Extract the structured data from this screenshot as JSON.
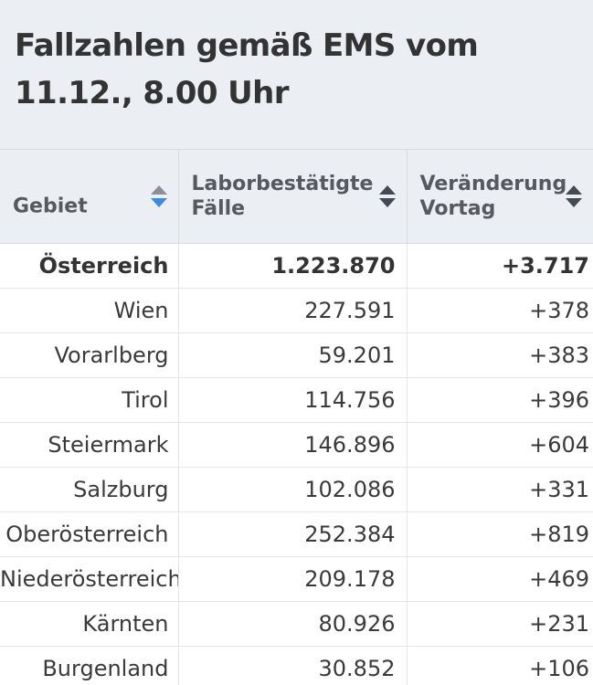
{
  "title": "Fallzahlen gemäß EMS vom 11.12., 8.00 Uhr",
  "columns": [
    {
      "label": "Gebiet",
      "sort_icon": "sort-active-icon"
    },
    {
      "label": "Laborbestätigte Fälle",
      "sort_icon": "sort-icon"
    },
    {
      "label": "Veränderung Vortag",
      "sort_icon": "sort-icon"
    }
  ],
  "rows": [
    {
      "region": "Österreich",
      "cases": "1.223.870",
      "change": "+3.717"
    },
    {
      "region": "Wien",
      "cases": "227.591",
      "change": "+378"
    },
    {
      "region": "Vorarlberg",
      "cases": "59.201",
      "change": "+383"
    },
    {
      "region": "Tirol",
      "cases": "114.756",
      "change": "+396"
    },
    {
      "region": "Steiermark",
      "cases": "146.896",
      "change": "+604"
    },
    {
      "region": "Salzburg",
      "cases": "102.086",
      "change": "+331"
    },
    {
      "region": "Oberösterreich",
      "cases": "252.384",
      "change": "+819"
    },
    {
      "region": "Niederösterreich",
      "cases": "209.178",
      "change": "+469"
    },
    {
      "region": "Kärnten",
      "cases": "80.926",
      "change": "+231"
    },
    {
      "region": "Burgenland",
      "cases": "30.852",
      "change": "+106"
    }
  ],
  "colors": {
    "header_bg": "#ebeef2",
    "active_sort": "#3a8dde",
    "text": "#3a3a3a"
  }
}
